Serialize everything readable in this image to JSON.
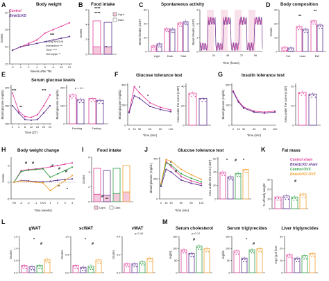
{
  "colors": {
    "control": "#e0409a",
    "bmal1": "#5b2f8f",
    "control_ovx": "#2e9e45",
    "bmal1_ovx": "#f0a030",
    "light_fill": "#f4c9dc",
    "dark_fill": "#ffffff"
  },
  "legend_A": {
    "control": "Control",
    "bmal1": "Bmal1cKD"
  },
  "legend_K": {
    "control_sham": "Control sham",
    "bmal1_sham": "Bmal1cKD sham",
    "control_ovx": "Control OVX",
    "bmal1_ovx": "Bmal1cKD OVX"
  },
  "panels": {
    "A": {
      "letter": "A",
      "title": "Body weight",
      "ylabel": "Grams",
      "xlabel": "Weeks after TM",
      "xticks": [
        "-2",
        "0",
        "2",
        "4",
        "6",
        "8",
        "10",
        "12"
      ],
      "yticks": [
        "15",
        "20",
        "25",
        "30"
      ],
      "stats": [
        "2-way ANOVA",
        "Interaction ***",
        "Time ****",
        "Genotype **"
      ],
      "star": "***"
    },
    "B": {
      "letter": "B",
      "title": "Food intake",
      "ylabel": "Grams",
      "yticks": [
        "0",
        "2",
        "4",
        "6"
      ],
      "legend_light": "Light",
      "legend_dark": "Dark",
      "stars": [
        "****",
        "****",
        "*"
      ]
    },
    "C": {
      "letter": "C",
      "title": "Spontaneous activity",
      "ylabel": "Beam breaks (x10³)",
      "cats": [
        "Light",
        "Dark",
        "Total"
      ],
      "yticks_bar": [
        "0",
        "20",
        "40",
        "60"
      ],
      "xlabel_line": "Time (hours)",
      "xticks_line": [
        "24",
        "48",
        "72",
        "96"
      ],
      "yticks_line": [
        "0",
        "1",
        "2",
        "3"
      ]
    },
    "D": {
      "letter": "D",
      "title": "Body composition",
      "ylabel": "Grams",
      "cats": [
        "Fat",
        "Lean",
        "BW"
      ],
      "yticks": [
        "0",
        "10",
        "20",
        "30"
      ],
      "stars": [
        "**",
        "**"
      ]
    },
    "E": {
      "letter": "E",
      "title": "Serum glucose levels",
      "ylabel": "Blood glucose (mg/dL)",
      "xlabel": "Time (ZT)",
      "xticks": [
        "0",
        "4",
        "8",
        "12",
        "16",
        "20",
        "24"
      ],
      "yticks": [
        "100",
        "150",
        "200"
      ],
      "cats": [
        "Feeding",
        "Fasting"
      ],
      "ylabel2": "Blood glucose (mg/dL)",
      "yticks2": [
        "0",
        "100",
        "200"
      ],
      "pval": "p = 0.1",
      "stars": [
        "***",
        "**",
        "***"
      ]
    },
    "F": {
      "letter": "F",
      "title": "Glucose tolerance test",
      "ylabel": "Blood glucose (mg/dL)",
      "xlabel": "Time (min)",
      "xticks": [
        "0",
        "15",
        "30",
        "60",
        "90",
        "120"
      ],
      "yticks": [
        "0",
        "200",
        "400"
      ],
      "ylabel2": "Area under the curve (x10³)",
      "yticks2": [
        "0",
        "20",
        "40"
      ],
      "stars": [
        "*",
        "*"
      ]
    },
    "G": {
      "letter": "G",
      "title": "Insulin tolerance test",
      "ylabel": "Blood glucose (mg/dL)",
      "xlabel": "Time (min)",
      "xticks": [
        "0",
        "15",
        "30",
        "60",
        "90",
        "120"
      ],
      "yticks": [
        "0",
        "100",
        "200"
      ],
      "ylabel2": "Area under the curve (x10³)",
      "yticks2": [
        "0",
        "10",
        "20"
      ]
    },
    "H": {
      "letter": "H",
      "title": "Body weight change",
      "ylabel": "Grams",
      "xlabel": "Time (weeks)",
      "xticks": [
        "TM",
        "-3",
        "-2",
        "-1",
        "OVX",
        "1",
        "2",
        "3",
        "4"
      ],
      "yticks": [
        "-5",
        "0",
        "5"
      ],
      "stars": [
        "#",
        "#",
        "#",
        "#",
        "#",
        "*",
        "*"
      ]
    },
    "I": {
      "letter": "I",
      "title": "Food intake",
      "ylabel": "Grams",
      "yticks": [
        "0",
        "2",
        "4",
        "6"
      ],
      "legend_light": "Light",
      "legend_dark": "Dark",
      "stars": [
        "#",
        "**"
      ]
    },
    "J": {
      "letter": "J",
      "title": "Glucose tolerance test",
      "ylabel": "Blood glucose (mg/dL)",
      "xlabel": "Time (min)",
      "xticks": [
        "0",
        "15",
        "30",
        "60",
        "90",
        "120"
      ],
      "yticks": [
        "0",
        "200",
        "400"
      ],
      "ylabel2": "Area under the curve (x10³)",
      "yticks2": [
        "0",
        "20",
        "40",
        "60"
      ],
      "stars": [
        "*",
        "#",
        "*",
        "#",
        "*"
      ]
    },
    "K": {
      "letter": "K",
      "title": "Fat mass",
      "ylabel": "% of body weight",
      "yticks": [
        "0",
        "10",
        "20",
        "30"
      ],
      "star": "#"
    },
    "L": {
      "letter": "L",
      "sub": [
        {
          "title": "gWAT",
          "ylabel": "Grams",
          "yticks": [
            "0.0",
            "0.5",
            "1.0",
            "1.5"
          ],
          "stars": [
            "*",
            "#"
          ]
        },
        {
          "title": "scWAT",
          "ylabel": "Grams",
          "yticks": [
            "0.0",
            "0.5",
            "1.0"
          ],
          "stars": [
            "*",
            "#"
          ]
        },
        {
          "title": "vWAT",
          "ylabel": "Grams",
          "yticks": [
            "0.0",
            "0.2",
            "0.4"
          ],
          "pval": "p=0.16"
        }
      ]
    },
    "M": {
      "letter": "M",
      "sub": [
        {
          "title": "Serum cholesterol",
          "ylabel": "mg/dL",
          "yticks": [
            "0",
            "50",
            "100",
            "150"
          ],
          "pval": "p=0.17",
          "stars": [
            "#"
          ]
        },
        {
          "title": "Serum triglyrecides",
          "ylabel": "mg/dL",
          "yticks": [
            "0",
            "50",
            "100",
            "150"
          ],
          "stars": [
            "*",
            "#"
          ]
        },
        {
          "title": "Liver triglyrecides",
          "ylabel": "mg / g of liver",
          "yticks": [
            "0",
            "10",
            "20",
            "30"
          ]
        }
      ]
    }
  },
  "chart_data": [
    {
      "panel": "A",
      "type": "line",
      "x": [
        -2,
        0,
        2,
        4,
        6,
        8,
        10,
        12
      ],
      "series": [
        {
          "name": "Control",
          "values": [
            19,
            20,
            21,
            22,
            24,
            25,
            26,
            27
          ]
        },
        {
          "name": "Bmal1cKD",
          "values": [
            19,
            20,
            20.5,
            21,
            21.5,
            22,
            22.5,
            23
          ]
        }
      ]
    },
    {
      "panel": "B",
      "type": "bar",
      "categories": [
        "Control",
        "Bmal1cKD"
      ],
      "series": [
        {
          "name": "Light",
          "values": [
            1,
            1
          ]
        },
        {
          "name": "Dark",
          "values": [
            3.5,
            3.3
          ]
        }
      ]
    },
    {
      "panel": "C-bar",
      "type": "bar",
      "categories": [
        "Light",
        "Dark",
        "Total"
      ],
      "series": [
        {
          "name": "Control",
          "values": [
            8,
            33,
            41
          ]
        },
        {
          "name": "Bmal1cKD",
          "values": [
            11,
            32,
            43
          ]
        }
      ]
    },
    {
      "panel": "D",
      "type": "bar",
      "categories": [
        "Fat",
        "Lean",
        "BW"
      ],
      "series": [
        {
          "name": "Control",
          "values": [
            3,
            18,
            22
          ]
        },
        {
          "name": "Bmal1cKD",
          "values": [
            2.5,
            16,
            19
          ]
        }
      ]
    },
    {
      "panel": "E-line",
      "type": "line",
      "x": [
        0,
        4,
        8,
        12,
        16,
        20,
        24
      ],
      "series": [
        {
          "name": "Control",
          "values": [
            185,
            135,
            120,
            118,
            125,
            150,
            180
          ]
        },
        {
          "name": "Bmal1cKD",
          "values": [
            150,
            130,
            112,
            110,
            112,
            130,
            150
          ]
        }
      ]
    },
    {
      "panel": "E-bar",
      "type": "bar",
      "categories": [
        "Feeding",
        "Fasting"
      ],
      "series": [
        {
          "name": "Control",
          "values": [
            160,
            140
          ]
        },
        {
          "name": "Bmal1cKD",
          "values": [
            135,
            130
          ]
        }
      ]
    },
    {
      "panel": "F-line",
      "type": "line",
      "x": [
        0,
        15,
        30,
        60,
        90,
        120
      ],
      "series": [
        {
          "name": "Control",
          "values": [
            150,
            430,
            360,
            250,
            200,
            170
          ]
        },
        {
          "name": "Bmal1cKD",
          "values": [
            140,
            330,
            300,
            210,
            175,
            150
          ]
        }
      ]
    },
    {
      "panel": "F-bar",
      "type": "bar",
      "categories": [
        "Control",
        "Bmal1cKD"
      ],
      "values": [
        37,
        31
      ]
    },
    {
      "panel": "G-line",
      "type": "line",
      "x": [
        0,
        15,
        30,
        60,
        90,
        120
      ],
      "series": [
        {
          "name": "Control",
          "values": [
            170,
            120,
            90,
            70,
            65,
            70
          ]
        },
        {
          "name": "Bmal1cKD",
          "values": [
            165,
            115,
            85,
            65,
            60,
            65
          ]
        }
      ]
    },
    {
      "panel": "G-bar",
      "type": "bar",
      "categories": [
        "Control",
        "Bmal1cKD"
      ],
      "values": [
        17,
        16
      ]
    },
    {
      "panel": "K",
      "type": "bar",
      "categories": [
        "Control sham",
        "Bmal1cKD sham",
        "Control OVX",
        "Bmal1cKD OVX"
      ],
      "values": [
        12,
        13,
        12,
        15
      ]
    }
  ]
}
